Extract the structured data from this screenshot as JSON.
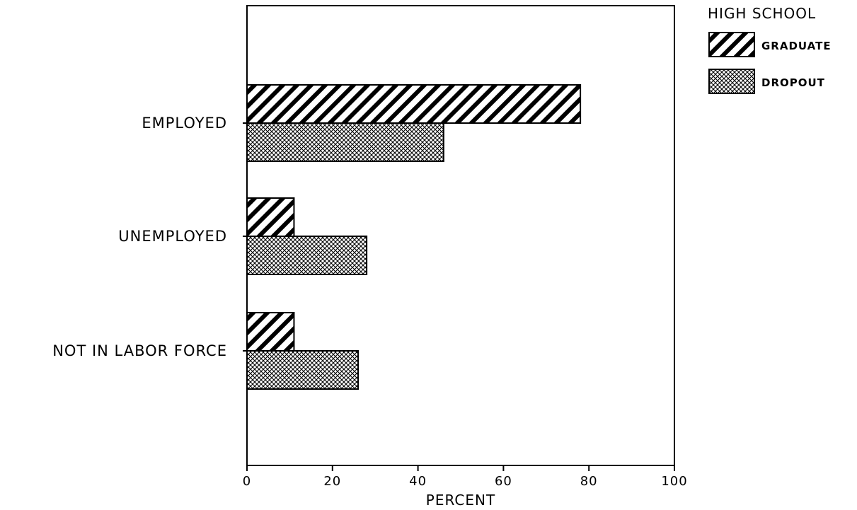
{
  "chart_data": {
    "type": "bar",
    "orientation": "horizontal",
    "categories": [
      "EMPLOYED",
      "UNEMPLOYED",
      "NOT IN LABOR FORCE"
    ],
    "series": [
      {
        "name": "GRADUATE",
        "pattern": "diagonal-hatch",
        "values": [
          78,
          11,
          11
        ]
      },
      {
        "name": "DROPOUT",
        "pattern": "crosshatch",
        "values": [
          46,
          28,
          26
        ]
      }
    ],
    "xlabel": "PERCENT",
    "xlim": [
      0,
      100
    ],
    "xticks": [
      "0",
      "20",
      "40",
      "60",
      "80",
      "100"
    ],
    "legend": {
      "title": "HIGH SCHOOL",
      "position": "top-right"
    },
    "grid": false,
    "colors": {
      "ink": "#000000",
      "background": "#ffffff"
    }
  }
}
